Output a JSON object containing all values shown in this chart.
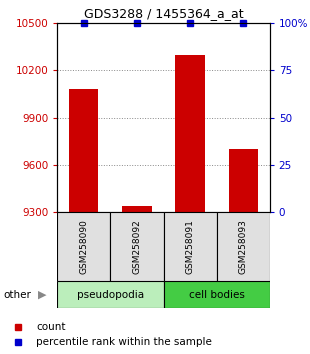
{
  "title": "GDS3288 / 1455364_a_at",
  "samples": [
    "GSM258090",
    "GSM258092",
    "GSM258091",
    "GSM258093"
  ],
  "groups": [
    "pseudopodia",
    "pseudopodia",
    "cell bodies",
    "cell bodies"
  ],
  "counts": [
    10080,
    9340,
    10300,
    9700
  ],
  "percentile_ranks": [
    100,
    100,
    100,
    100
  ],
  "ylim_left": [
    9300,
    10500
  ],
  "ylim_right": [
    0,
    100
  ],
  "yticks_left": [
    9300,
    9600,
    9900,
    10200,
    10500
  ],
  "yticks_right": [
    0,
    25,
    50,
    75,
    100
  ],
  "ytick_labels_left": [
    "9300",
    "9600",
    "9900",
    "10200",
    "10500"
  ],
  "ytick_labels_right": [
    "0",
    "25",
    "50",
    "75",
    "100%"
  ],
  "bar_color": "#cc0000",
  "percentile_color": "#0000cc",
  "group_colors": {
    "pseudopodia": "#bbeebb",
    "cell bodies": "#44cc44"
  },
  "left_tick_color": "#cc0000",
  "right_tick_color": "#0000cc",
  "grid_color": "#888888",
  "background_color": "#e0e0e0",
  "plot_bg_color": "#ffffff",
  "bar_width": 0.55,
  "legend_count_color": "#cc0000",
  "legend_pct_color": "#0000cc"
}
